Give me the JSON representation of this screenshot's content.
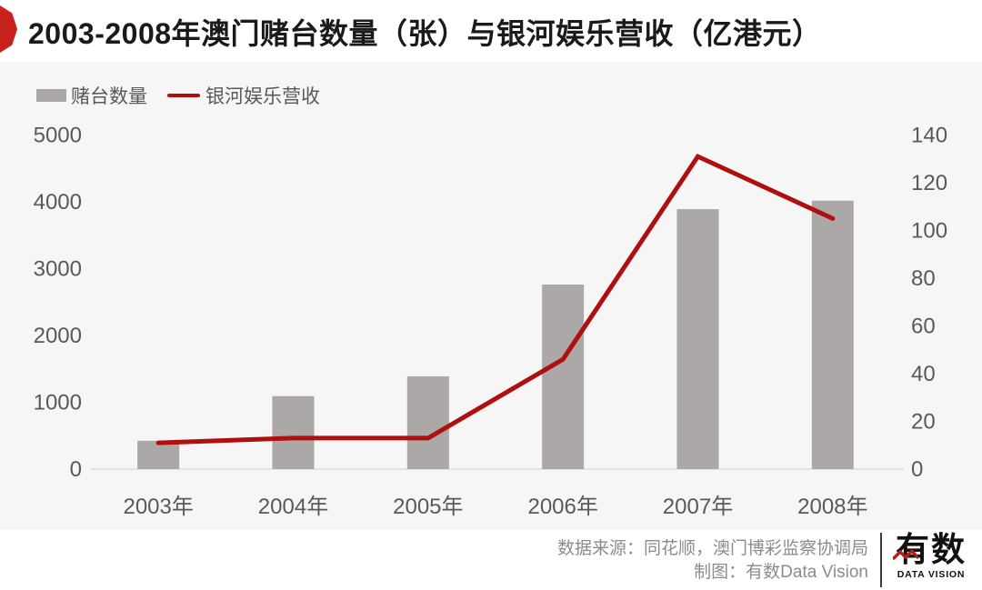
{
  "header": {
    "title": "2003-2008年澳门赌台数量（张）与银河娱乐营收（亿港元）"
  },
  "chart_data": {
    "type": "bar",
    "title": "2003-2008年澳门赌台数量（张）与银河娱乐营收（亿港元）",
    "categories": [
      "2003年",
      "2004年",
      "2005年",
      "2006年",
      "2007年",
      "2008年"
    ],
    "series": [
      {
        "name": "赌台数量",
        "type": "bar",
        "axis": "left",
        "color": "#aba8a7",
        "values": [
          424,
          1092,
          1388,
          2762,
          3890,
          4017
        ]
      },
      {
        "name": "银河娱乐营收",
        "type": "line",
        "axis": "right",
        "color": "#b00f0f",
        "values": [
          11,
          13,
          13,
          46,
          131,
          105
        ]
      }
    ],
    "left_axis": {
      "min": 0,
      "max": 5000,
      "step": 1000,
      "tick_labels": [
        "0",
        "1000",
        "2000",
        "3000",
        "4000",
        "5000"
      ]
    },
    "right_axis": {
      "min": 0,
      "max": 140,
      "step": 20,
      "tick_labels": [
        "0",
        "20",
        "40",
        "60",
        "80",
        "100",
        "120",
        "140"
      ]
    },
    "grid": false,
    "legend_position": "top-left"
  },
  "footer": {
    "source": "数据来源：同花顺，澳门博彩监察协调局",
    "credit": "制图：有数Data Vision",
    "logo_text": "有数",
    "logo_subtext": "DATA VISION"
  },
  "colors": {
    "accent_red": "#c9211e",
    "bar": "#aba8a7",
    "line": "#b00f0f",
    "axis_text": "#595959",
    "chart_bg": "#f6f6f6",
    "baseline": "#e2e2e2"
  }
}
